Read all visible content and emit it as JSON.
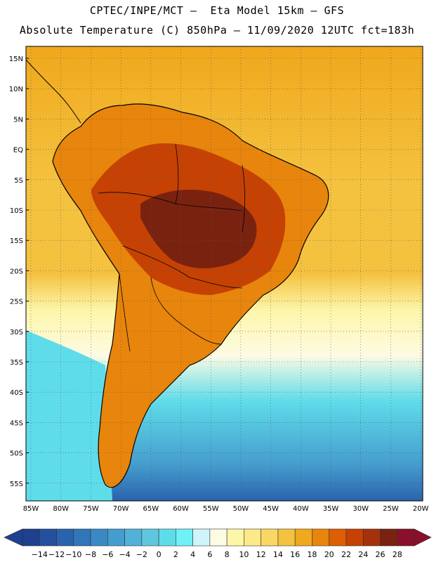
{
  "header": {
    "line1": "CPTEC/INPE/MCT –  Eta Model 15km – GFS",
    "line2": "Absolute Temperature (C) 850hPa – 11/09/2020 12UTC fct=183h"
  },
  "axes": {
    "lat_labels": [
      "15N",
      "10N",
      "5N",
      "EQ",
      "5S",
      "10S",
      "15S",
      "20S",
      "25S",
      "30S",
      "35S",
      "40S",
      "45S",
      "50S",
      "55S"
    ],
    "lon_labels": [
      "85W",
      "80W",
      "75W",
      "70W",
      "65W",
      "60W",
      "55W",
      "50W",
      "45W",
      "40W",
      "35W",
      "30W",
      "25W",
      "20W"
    ]
  },
  "colorbar": {
    "labels": [
      "-14",
      "-12",
      "-10",
      "-8",
      "-6",
      "-4",
      "-2",
      "0",
      "2",
      "4",
      "6",
      "8",
      "10",
      "12",
      "14",
      "16",
      "18",
      "20",
      "22",
      "24",
      "26",
      "28"
    ],
    "colors": [
      "#1f3f8f",
      "#24509e",
      "#2a63ad",
      "#3076b9",
      "#3a89c4",
      "#459dce",
      "#52b1d8",
      "#5fc6e0",
      "#5fdcea",
      "#6ff2f5",
      "#cff5fb",
      "#fdfbe3",
      "#fdf6a8",
      "#fce98a",
      "#f8d764",
      "#f4c23f",
      "#f0a81c",
      "#e8850c",
      "#dc5e05",
      "#c54204",
      "#a3320a",
      "#7a2210",
      "#8a0f2a"
    ]
  },
  "map_colors": {
    "ocean_north": "#f0a81c",
    "ocean_mid": "#f4c23f",
    "ocean_pale": "#fdf6a8",
    "ocean_cream": "#fdfbe3",
    "ocean_cyan": "#5fdcea",
    "ocean_blue": "#459dce",
    "ocean_deep": "#2a63ad",
    "land_orange": "#e8850c",
    "land_red": "#c54204",
    "land_dark": "#a3320a",
    "land_core": "#7a2210",
    "coast": "#000000"
  }
}
